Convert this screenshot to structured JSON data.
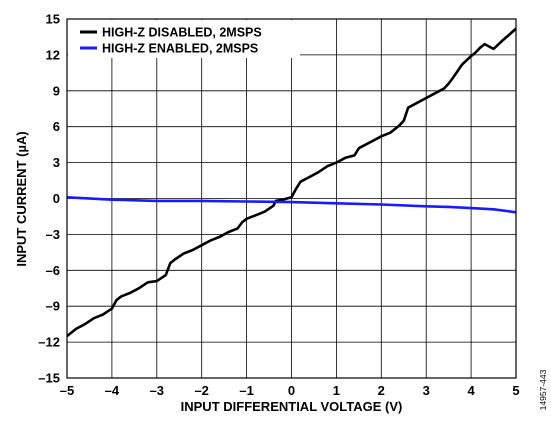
{
  "chart_data": {
    "type": "line",
    "xlabel": "INPUT DIFFERENTIAL VOLTAGE (V)",
    "ylabel": "INPUT CURRENT (µA)",
    "xlim": [
      -5,
      5
    ],
    "ylim": [
      -15,
      15
    ],
    "x_ticks": [
      -5,
      -4,
      -3,
      -2,
      -1,
      0,
      1,
      2,
      3,
      4,
      5
    ],
    "y_ticks": [
      -15,
      -12,
      -9,
      -6,
      -3,
      0,
      3,
      6,
      9,
      12,
      15
    ],
    "x_tick_labels": [
      "–5",
      "–4",
      "–3",
      "–2",
      "–1",
      "0",
      "1",
      "2",
      "3",
      "4",
      "5"
    ],
    "y_tick_labels": [
      "–15",
      "–12",
      "–9",
      "–6",
      "–3",
      "0",
      "3",
      "6",
      "9",
      "12",
      "15"
    ],
    "grid": true,
    "legend_position": "top-left",
    "series": [
      {
        "name": "HIGH-Z DISABLED, 2MSPS",
        "color": "#000000",
        "x": [
          -5.0,
          -4.8,
          -4.6,
          -4.4,
          -4.2,
          -4.0,
          -3.9,
          -3.8,
          -3.6,
          -3.4,
          -3.2,
          -3.0,
          -2.8,
          -2.7,
          -2.6,
          -2.4,
          -2.2,
          -2.0,
          -1.8,
          -1.6,
          -1.4,
          -1.2,
          -1.1,
          -1.0,
          -0.8,
          -0.6,
          -0.4,
          -0.35,
          -0.2,
          0.0,
          0.1,
          0.2,
          0.4,
          0.6,
          0.8,
          1.0,
          1.2,
          1.4,
          1.5,
          1.6,
          1.8,
          2.0,
          2.2,
          2.4,
          2.5,
          2.6,
          2.8,
          3.0,
          3.2,
          3.4,
          3.5,
          3.6,
          3.8,
          4.0,
          4.1,
          4.2,
          4.3,
          4.5,
          4.7,
          4.85,
          5.0
        ],
        "y": [
          -11.5,
          -10.9,
          -10.5,
          -10.0,
          -9.7,
          -9.2,
          -8.5,
          -8.2,
          -7.9,
          -7.5,
          -7.0,
          -6.9,
          -6.4,
          -5.4,
          -5.1,
          -4.6,
          -4.3,
          -3.9,
          -3.5,
          -3.2,
          -2.8,
          -2.5,
          -2.0,
          -1.7,
          -1.4,
          -1.1,
          -0.6,
          -0.2,
          -0.1,
          0.1,
          0.8,
          1.4,
          1.8,
          2.2,
          2.7,
          3.0,
          3.4,
          3.6,
          4.2,
          4.4,
          4.8,
          5.2,
          5.5,
          6.1,
          6.5,
          7.6,
          8.0,
          8.4,
          8.8,
          9.2,
          9.6,
          10.1,
          11.2,
          11.9,
          12.2,
          12.6,
          12.9,
          12.5,
          13.2,
          13.7,
          14.2
        ]
      },
      {
        "name": "HIGH-Z ENABLED, 2MSPS",
        "color": "#1a1aff",
        "x": [
          -5.0,
          -4.0,
          -3.0,
          -2.0,
          -1.0,
          0.0,
          1.0,
          2.0,
          3.0,
          3.5,
          4.0,
          4.5,
          5.0
        ],
        "y": [
          0.1,
          -0.1,
          -0.2,
          -0.2,
          -0.25,
          -0.3,
          -0.4,
          -0.5,
          -0.65,
          -0.7,
          -0.8,
          -0.9,
          -1.15
        ]
      }
    ]
  },
  "figure_id": "14957-443"
}
